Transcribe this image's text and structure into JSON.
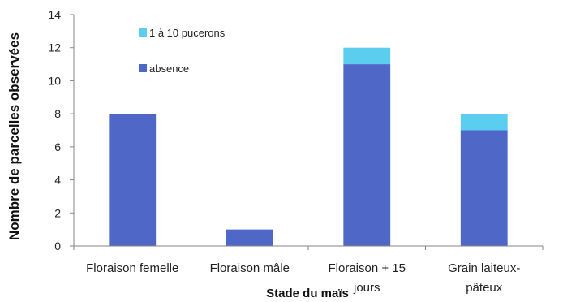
{
  "chart_data": {
    "type": "bar",
    "stacked": true,
    "categories": [
      [
        "Floraison femelle"
      ],
      [
        "Floraison mâle"
      ],
      [
        "Floraison + 15",
        "jours"
      ],
      [
        "Grain laiteux-",
        "pâteux"
      ]
    ],
    "series": [
      {
        "name": "absence",
        "color": "#4f67c7",
        "values": [
          8,
          1,
          11,
          7
        ]
      },
      {
        "name": "1 à 10 pucerons",
        "color": "#5bcdef",
        "values": [
          0,
          0,
          1,
          1
        ]
      }
    ],
    "xlabel": "Stade du maïs",
    "ylabel": "Nombre de parcelles observées",
    "ylim": [
      0,
      14
    ],
    "yticks": [
      0,
      2,
      4,
      6,
      8,
      10,
      12,
      14
    ],
    "grid": false,
    "legend_position": "top-left"
  }
}
